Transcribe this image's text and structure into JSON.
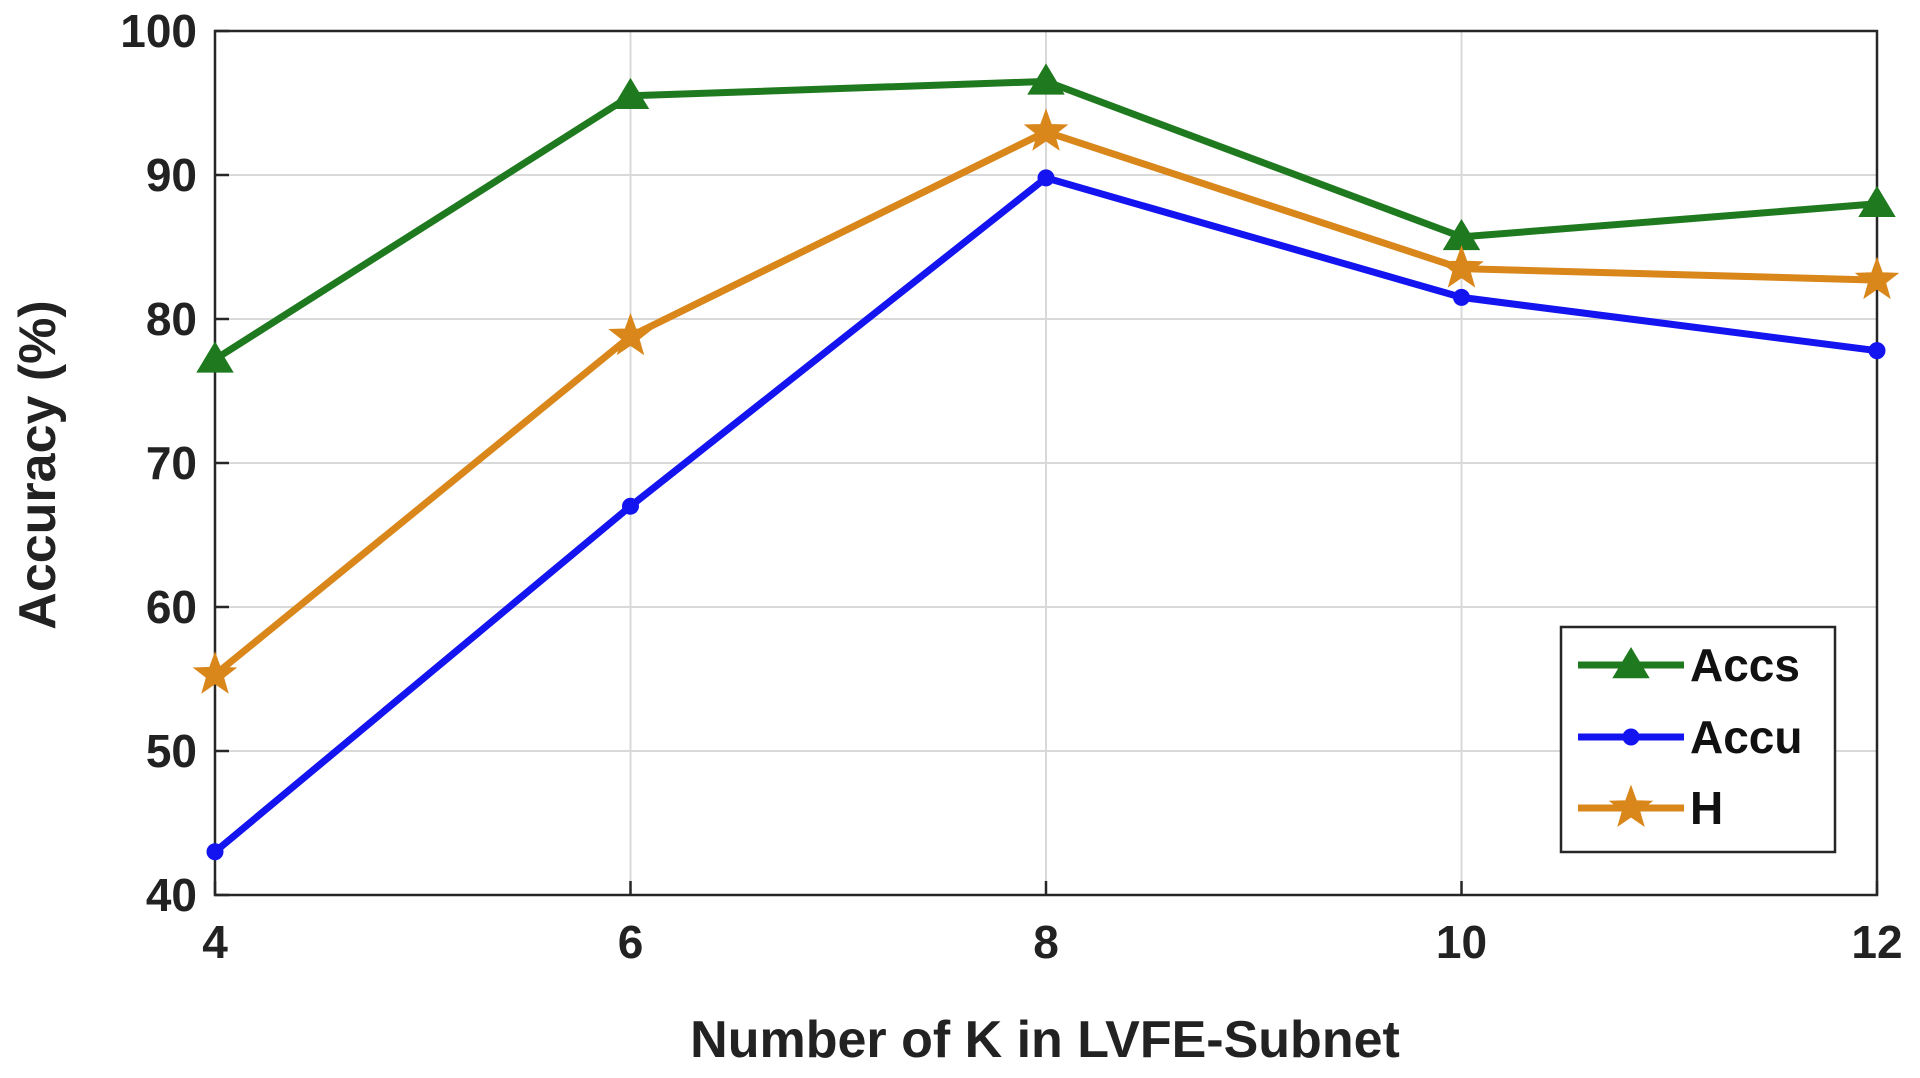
{
  "chart_data": {
    "type": "line",
    "title": "",
    "xlabel": "Number of K in LVFE-Subnet",
    "ylabel": "Accuracy (%)",
    "x": [
      4,
      6,
      8,
      10,
      12
    ],
    "xlim": [
      4,
      12
    ],
    "ylim": [
      40,
      100
    ],
    "xticks": [
      "4",
      "6",
      "8",
      "10",
      "12"
    ],
    "yticks": [
      "40",
      "50",
      "60",
      "70",
      "80",
      "90",
      "100"
    ],
    "grid": true,
    "legend_position": "lower-right",
    "series": [
      {
        "name": "Accs",
        "color": "#1f7a1f",
        "marker": "triangle",
        "values": [
          77.2,
          95.5,
          96.5,
          85.7,
          88.0
        ]
      },
      {
        "name": "Accu",
        "color": "#1414f0",
        "marker": "circle",
        "values": [
          43.0,
          67.0,
          89.8,
          81.5,
          77.8
        ]
      },
      {
        "name": "H",
        "color": "#d9861a",
        "marker": "star",
        "values": [
          55.3,
          78.8,
          93.0,
          83.5,
          82.7
        ]
      }
    ]
  }
}
